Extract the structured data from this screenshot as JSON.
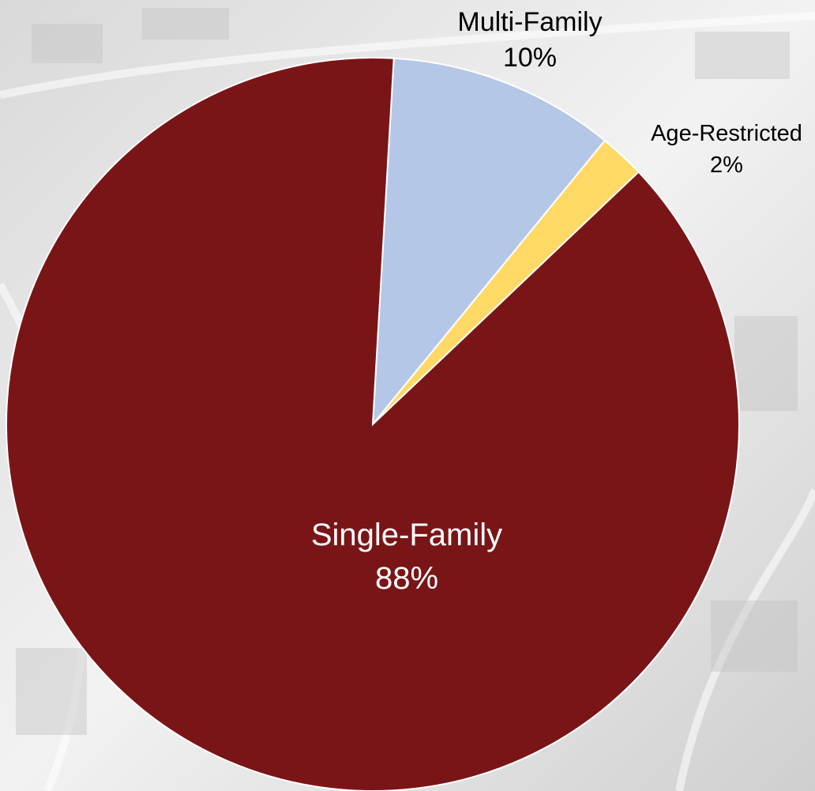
{
  "chart_data": {
    "type": "pie",
    "slices": [
      {
        "name": "Single-Family",
        "label": "88%",
        "value": 88,
        "color": "#7a1517"
      },
      {
        "name": "Multi-Family",
        "label": "10%",
        "value": 10,
        "color": "#b4c7e7"
      },
      {
        "name": "Age-Restricted",
        "label": "2%",
        "value": 2,
        "color": "#ffd966"
      }
    ]
  }
}
